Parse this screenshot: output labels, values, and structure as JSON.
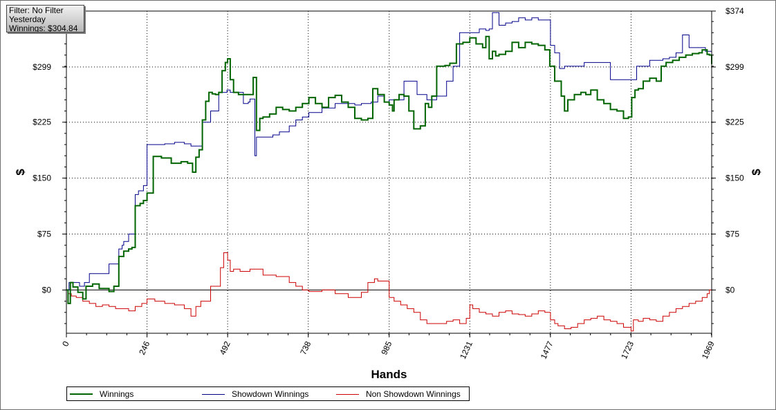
{
  "window": {
    "background": "#ffffff"
  },
  "info_box": {
    "filter": "Filter: No Filter",
    "period": "Yesterday",
    "winnings": "Winnings: $304.84"
  },
  "chart_data": {
    "type": "line",
    "xlabel": "Hands",
    "ylabel": "$",
    "ylabel_right": "$",
    "xlim": [
      0,
      1969
    ],
    "ylim": [
      -58,
      374
    ],
    "x_ticks": [
      0,
      246,
      492,
      738,
      985,
      1231,
      1477,
      1723,
      1969
    ],
    "x_tick_labels": [
      "0",
      "246",
      "492",
      "738",
      "985",
      "1231",
      "1477",
      "1723",
      "1969"
    ],
    "y_ticks": [
      0,
      75,
      150,
      225,
      299,
      374
    ],
    "y_tick_labels_left": [
      "$0",
      "$75",
      "$150",
      "$225",
      "$299",
      ""
    ],
    "y_tick_labels_right": [
      "$0",
      "$75",
      "$150",
      "$225",
      "$299",
      "$374"
    ],
    "grid": true,
    "zero_line": true,
    "legend_position": "bottom-left",
    "series": [
      {
        "name": "Winnings",
        "color": "#006400",
        "x": [
          0,
          5,
          12,
          20,
          35,
          50,
          60,
          80,
          100,
          130,
          145,
          160,
          175,
          190,
          200,
          210,
          225,
          235,
          246,
          265,
          290,
          320,
          350,
          370,
          385,
          395,
          405,
          415,
          425,
          435,
          445,
          455,
          465,
          475,
          485,
          492,
          500,
          510,
          525,
          550,
          570,
          580,
          590,
          600,
          620,
          640,
          660,
          680,
          700,
          720,
          740,
          760,
          780,
          800,
          820,
          840,
          860,
          880,
          900,
          920,
          935,
          950,
          970,
          985,
          995,
          1000,
          1015,
          1030,
          1045,
          1060,
          1080,
          1095,
          1105,
          1115,
          1130,
          1155,
          1170,
          1190,
          1210,
          1231,
          1250,
          1270,
          1280,
          1290,
          1300,
          1310,
          1320,
          1340,
          1360,
          1380,
          1400,
          1420,
          1440,
          1460,
          1475,
          1490,
          1510,
          1520,
          1530,
          1550,
          1570,
          1585,
          1600,
          1620,
          1640,
          1660,
          1680,
          1700,
          1715,
          1725,
          1735,
          1745,
          1760,
          1780,
          1800,
          1815,
          1830,
          1850,
          1870,
          1890,
          1910,
          1930,
          1940,
          1955,
          1962,
          1969
        ],
        "y": [
          0,
          -18,
          10,
          4,
          -3,
          -12,
          5,
          8,
          2,
          -2,
          5,
          45,
          52,
          55,
          57,
          113,
          116,
          120,
          130,
          179,
          177,
          170,
          172,
          170,
          158,
          178,
          188,
          228,
          253,
          265,
          263,
          262,
          265,
          294,
          305,
          310,
          282,
          265,
          262,
          262,
          285,
          214,
          230,
          232,
          236,
          245,
          242,
          240,
          245,
          250,
          258,
          250,
          245,
          258,
          261,
          252,
          245,
          230,
          228,
          230,
          270,
          262,
          252,
          248,
          240,
          255,
          262,
          260,
          240,
          216,
          220,
          250,
          245,
          260,
          300,
          301,
          304,
          330,
          332,
          338,
          330,
          325,
          340,
          310,
          320,
          314,
          316,
          320,
          332,
          325,
          332,
          330,
          328,
          322,
          300,
          280,
          260,
          240,
          255,
          262,
          265,
          262,
          268,
          255,
          250,
          242,
          240,
          230,
          232,
          258,
          268,
          270,
          280,
          284,
          280,
          300,
          305,
          308,
          312,
          315,
          317,
          318,
          322,
          316,
          315,
          303
        ]
      },
      {
        "name": "Showdown Winnings",
        "color": "#00008b",
        "x": [
          0,
          8,
          15,
          25,
          40,
          55,
          60,
          70,
          100,
          130,
          150,
          160,
          170,
          175,
          190,
          200,
          210,
          220,
          235,
          246,
          270,
          300,
          330,
          360,
          380,
          400,
          415,
          440,
          465,
          490,
          492,
          500,
          540,
          555,
          560,
          575,
          580,
          600,
          630,
          650,
          680,
          700,
          720,
          740,
          780,
          820,
          850,
          880,
          900,
          930,
          950,
          970,
          985,
          1000,
          1030,
          1060,
          1070,
          1100,
          1130,
          1160,
          1180,
          1200,
          1231,
          1260,
          1280,
          1290,
          1300,
          1320,
          1340,
          1360,
          1380,
          1400,
          1420,
          1440,
          1460,
          1477,
          1490,
          1505,
          1520,
          1540,
          1560,
          1580,
          1600,
          1640,
          1660,
          1680,
          1700,
          1723,
          1740,
          1760,
          1780,
          1800,
          1820,
          1840,
          1860,
          1880,
          1900,
          1930,
          1950,
          1969
        ],
        "y": [
          0,
          10,
          10,
          10,
          5,
          10,
          10,
          22,
          22,
          35,
          35,
          55,
          60,
          65,
          75,
          75,
          128,
          133,
          140,
          195,
          195,
          196,
          198,
          196,
          193,
          193,
          225,
          240,
          265,
          268,
          268,
          265,
          250,
          252,
          256,
          180,
          205,
          205,
          208,
          212,
          220,
          228,
          232,
          238,
          244,
          250,
          250,
          248,
          250,
          252,
          260,
          252,
          255,
          255,
          280,
          280,
          262,
          255,
          260,
          280,
          300,
          345,
          345,
          350,
          348,
          350,
          372,
          355,
          358,
          360,
          365,
          362,
          365,
          362,
          362,
          328,
          318,
          297,
          300,
          300,
          300,
          305,
          305,
          305,
          282,
          282,
          282,
          282,
          300,
          300,
          308,
          308,
          310,
          312,
          318,
          342,
          325,
          325,
          320,
          320
        ]
      },
      {
        "name": "Non Showdown Winnings",
        "color": "#cc0000",
        "x": [
          0,
          5,
          15,
          30,
          50,
          70,
          90,
          110,
          130,
          150,
          170,
          190,
          210,
          230,
          246,
          270,
          300,
          330,
          360,
          380,
          395,
          410,
          440,
          470,
          480,
          492,
          500,
          510,
          530,
          560,
          600,
          640,
          680,
          700,
          720,
          740,
          780,
          820,
          860,
          880,
          900,
          920,
          940,
          950,
          985,
          1000,
          1020,
          1040,
          1060,
          1080,
          1100,
          1130,
          1160,
          1180,
          1200,
          1220,
          1231,
          1240,
          1260,
          1280,
          1300,
          1320,
          1340,
          1360,
          1380,
          1400,
          1420,
          1440,
          1460,
          1477,
          1490,
          1500,
          1520,
          1540,
          1560,
          1580,
          1600,
          1620,
          1640,
          1660,
          1680,
          1700,
          1723,
          1730,
          1745,
          1760,
          1780,
          1800,
          1820,
          1840,
          1860,
          1880,
          1900,
          1920,
          1940,
          1955,
          1962,
          1969
        ],
        "y": [
          0,
          -5,
          -8,
          -10,
          -15,
          -18,
          -22,
          -20,
          -22,
          -25,
          -25,
          -28,
          -22,
          -18,
          -12,
          -15,
          -18,
          -20,
          -25,
          -35,
          -22,
          -15,
          5,
          30,
          50,
          40,
          25,
          28,
          25,
          28,
          20,
          18,
          10,
          5,
          0,
          -2,
          0,
          -5,
          -10,
          -10,
          -3,
          10,
          15,
          12,
          -10,
          -15,
          -20,
          -25,
          -30,
          -40,
          -45,
          -45,
          -42,
          -40,
          -45,
          -38,
          -20,
          -25,
          -30,
          -32,
          -35,
          -30,
          -28,
          -32,
          -33,
          -35,
          -32,
          -28,
          -30,
          -40,
          -45,
          -48,
          -52,
          -50,
          -45,
          -40,
          -38,
          -35,
          -40,
          -42,
          -45,
          -50,
          -55,
          -40,
          -42,
          -38,
          -40,
          -42,
          -35,
          -30,
          -25,
          -22,
          -18,
          -15,
          -10,
          -5,
          0,
          -15
        ]
      }
    ]
  }
}
